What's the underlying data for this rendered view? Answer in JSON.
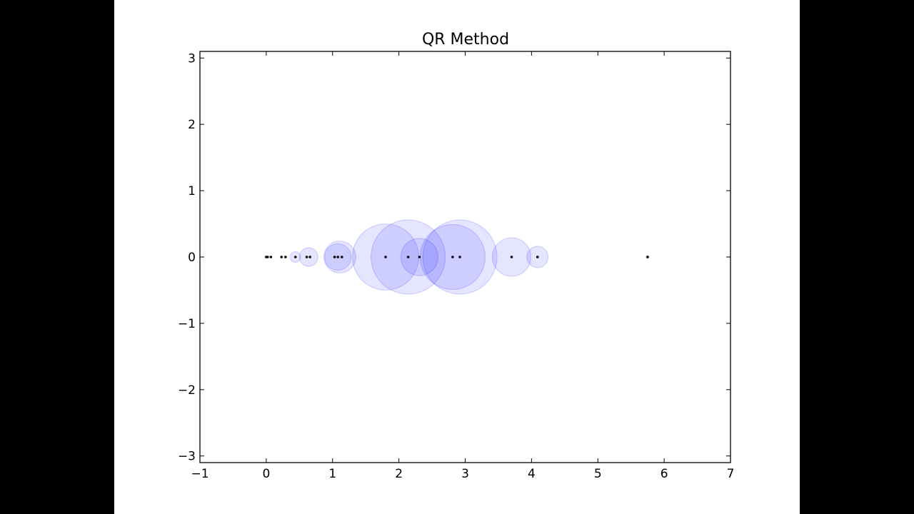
{
  "chart_data": {
    "type": "scatter",
    "title": "QR Method",
    "xlabel": "",
    "ylabel": "",
    "xlim": [
      -1,
      7
    ],
    "ylim": [
      -3.1,
      3.1
    ],
    "grid": false,
    "legend": null,
    "xticks": [
      "−1",
      "0",
      "1",
      "2",
      "3",
      "4",
      "5",
      "6",
      "7"
    ],
    "yticks": [
      "3",
      "2",
      "1",
      "0",
      "−1",
      "−2",
      "−3"
    ],
    "points": {
      "description": "Eigenvalue estimates (black dots), all on the real axis",
      "x": [
        0.0,
        0.02,
        0.07,
        0.23,
        0.29,
        0.44,
        0.61,
        0.66,
        1.03,
        1.08,
        1.14,
        1.8,
        2.14,
        2.31,
        2.81,
        2.92,
        3.7,
        4.09,
        5.75
      ],
      "y": [
        0,
        0,
        0,
        0,
        0,
        0,
        0,
        0,
        0,
        0,
        0,
        0,
        0,
        0,
        0,
        0,
        0,
        0,
        0
      ],
      "color": "#000000"
    },
    "circles": {
      "description": "Gershgorin-style discs (translucent blue) centered on the real axis",
      "centers": [
        0.44,
        0.64,
        1.08,
        1.11,
        1.8,
        2.14,
        2.31,
        2.81,
        2.92,
        3.7,
        4.09,
        5.75
      ],
      "radii": [
        0.08,
        0.14,
        0.2,
        0.24,
        0.5,
        0.56,
        0.28,
        0.49,
        0.56,
        0.29,
        0.16,
        0.02
      ],
      "fill_color": "#0000ff",
      "fill_alpha": 0.1,
      "edge_color": "#0000ff",
      "edge_alpha": 0.15
    }
  }
}
